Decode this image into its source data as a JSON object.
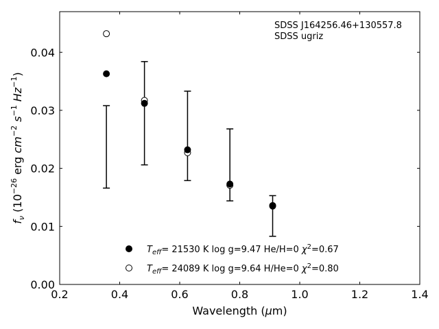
{
  "chart_data": {
    "type": "scatter",
    "title": "",
    "xlabel": "Wavelength (μm)",
    "ylabel": "f_ν (10^-26 erg cm^-2 s^-1 Hz^-1)",
    "xlim": [
      0.2,
      1.4
    ],
    "ylim": [
      0.0,
      0.047
    ],
    "xticks": [
      "0.2",
      "0.4",
      "0.6",
      "0.8",
      "1.0",
      "1.2",
      "1.4"
    ],
    "yticks": [
      "0.00",
      "0.01",
      "0.02",
      "0.03",
      "0.04"
    ],
    "grid": false,
    "legend_position": "bottom-center",
    "annotations": [
      "SDSS J164256.46+130557.8",
      "SDSS ugriz"
    ],
    "observed": {
      "x": [
        0.3557,
        0.4825,
        0.6261,
        0.7672,
        0.9097
      ],
      "y_low": [
        0.0166,
        0.0206,
        0.0179,
        0.0144,
        0.0083
      ],
      "y_high": [
        0.0308,
        0.0384,
        0.0333,
        0.0268,
        0.0153
      ]
    },
    "series": [
      {
        "name": "T_eff= 21530 K  log g=9.47  He/H=0  χ²=0.67",
        "marker": "filled-circle",
        "x": [
          0.3557,
          0.4825,
          0.6261,
          0.7672,
          0.9097
        ],
        "y": [
          0.0363,
          0.0312,
          0.0232,
          0.0173,
          0.0136
        ]
      },
      {
        "name": "T_eff= 24089 K  log g=9.64  H/He=0  χ²=0.80",
        "marker": "open-circle",
        "x": [
          0.3557,
          0.4825,
          0.6261,
          0.7672,
          0.9097
        ],
        "y": [
          0.0432,
          0.0317,
          0.0227,
          0.0171,
          0.0135
        ]
      }
    ]
  }
}
